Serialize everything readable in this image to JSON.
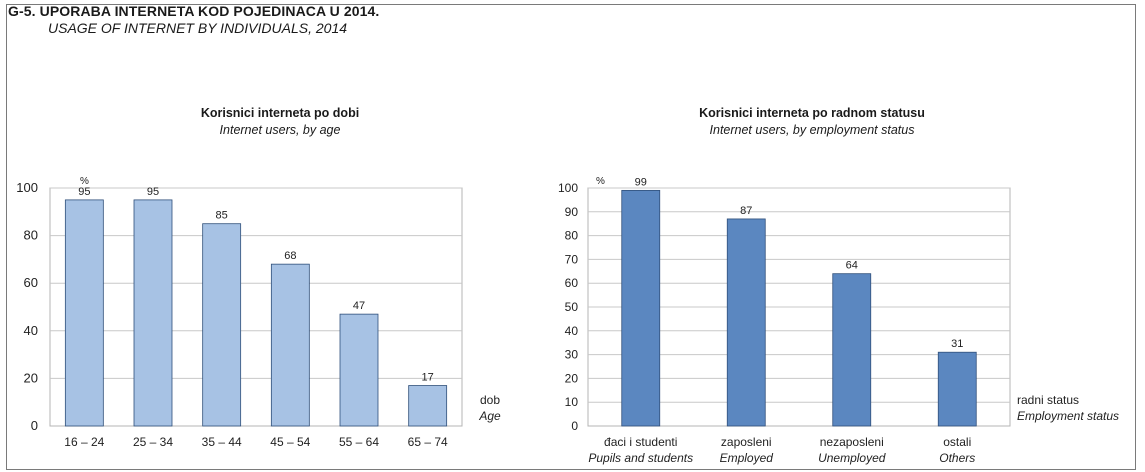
{
  "header": {
    "title": "G-5. UPORABA INTERNETA KOD POJEDINACA U 2014.",
    "subtitle": "USAGE OF INTERNET BY INDIVIDUALS, 2014"
  },
  "chart_data": [
    {
      "type": "bar",
      "title": "Korisnici interneta po dobi",
      "subtitle": "Internet users, by age",
      "unit": "%",
      "xlabel": "dob",
      "xlabel_en": "Age",
      "categories": [
        "16 – 24",
        "25 – 34",
        "35 – 44",
        "45 – 54",
        "55 – 64",
        "65 – 74"
      ],
      "values": [
        95,
        95,
        85,
        68,
        47,
        17
      ],
      "ylim": [
        0,
        100
      ],
      "yticks": [
        0,
        20,
        40,
        60,
        80,
        100
      ],
      "grid": true,
      "bar_color": "#a7c2e4"
    },
    {
      "type": "bar",
      "title": "Korisnici interneta po radnom statusu",
      "subtitle": "Internet users, by employment status",
      "unit": "%",
      "xlabel": "radni status",
      "xlabel_en": "Employment status",
      "categories": [
        "đaci i studenti",
        "zaposleni",
        "nezaposleni",
        "ostali"
      ],
      "categories_en": [
        "Pupils and students",
        "Employed",
        "Unemployed",
        "Others"
      ],
      "values": [
        99,
        87,
        64,
        31
      ],
      "ylim": [
        0,
        100
      ],
      "yticks": [
        0,
        10,
        20,
        30,
        40,
        50,
        60,
        70,
        80,
        90,
        100
      ],
      "grid": true,
      "bar_color": "#5b87c0"
    }
  ]
}
